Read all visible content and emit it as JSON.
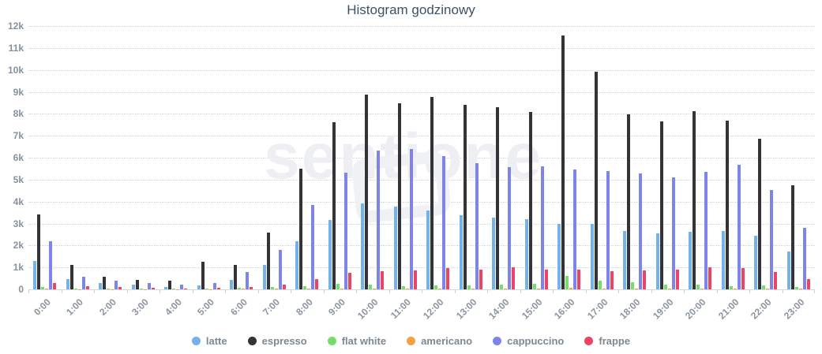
{
  "title": "Histogram godzinowy",
  "watermark": "sentione",
  "chart_data": {
    "type": "bar",
    "title": "Histogram godzinowy",
    "grid": "horizontal-dotted",
    "legend_position": "bottom",
    "ylim": [
      0,
      12000
    ],
    "ytick_step": 1000,
    "ytick_labels": [
      "0",
      "1k",
      "2k",
      "3k",
      "4k",
      "5k",
      "6k",
      "7k",
      "8k",
      "9k",
      "10k",
      "11k",
      "12k"
    ],
    "categories": [
      "0:00",
      "1:00",
      "2:00",
      "3:00",
      "4:00",
      "5:00",
      "6:00",
      "7:00",
      "8:00",
      "9:00",
      "10:00",
      "11:00",
      "12:00",
      "13:00",
      "14:00",
      "15:00",
      "16:00",
      "17:00",
      "18:00",
      "19:00",
      "20:00",
      "21:00",
      "22:00",
      "23:00"
    ],
    "series": [
      {
        "name": "latte",
        "color": "#74b2ea",
        "values": [
          1300,
          450,
          280,
          220,
          120,
          170,
          420,
          1100,
          2200,
          3180,
          3900,
          3760,
          3580,
          3370,
          3280,
          3200,
          3000,
          2970,
          2670,
          2550,
          2640,
          2660,
          2430,
          1740
        ]
      },
      {
        "name": "espresso",
        "color": "#333338",
        "values": [
          3400,
          1100,
          560,
          420,
          390,
          1250,
          1100,
          2570,
          5480,
          7600,
          8870,
          8480,
          8760,
          8420,
          8300,
          8080,
          11580,
          9900,
          7990,
          7640,
          8120,
          7680,
          6860,
          4760
        ]
      },
      {
        "name": "flat white",
        "color": "#76dd6b",
        "values": [
          100,
          50,
          40,
          30,
          30,
          40,
          90,
          110,
          160,
          240,
          200,
          160,
          180,
          190,
          200,
          270,
          620,
          400,
          330,
          210,
          210,
          160,
          190,
          110
        ]
      },
      {
        "name": "americano",
        "color": "#f7a046",
        "values": [
          30,
          10,
          10,
          10,
          10,
          10,
          20,
          30,
          40,
          50,
          50,
          50,
          50,
          50,
          50,
          50,
          60,
          50,
          50,
          50,
          50,
          50,
          50,
          30
        ]
      },
      {
        "name": "cappuccino",
        "color": "#7f84e8",
        "values": [
          2200,
          580,
          400,
          300,
          210,
          290,
          780,
          1800,
          3850,
          5330,
          6320,
          6380,
          6060,
          5760,
          5570,
          5600,
          5450,
          5390,
          5280,
          5110,
          5340,
          5670,
          4510,
          2820
        ]
      },
      {
        "name": "frappe",
        "color": "#ea4467",
        "values": [
          280,
          160,
          100,
          60,
          50,
          70,
          110,
          220,
          460,
          750,
          820,
          880,
          970,
          900,
          1000,
          890,
          900,
          820,
          870,
          890,
          1010,
          960,
          780,
          450
        ]
      }
    ]
  }
}
